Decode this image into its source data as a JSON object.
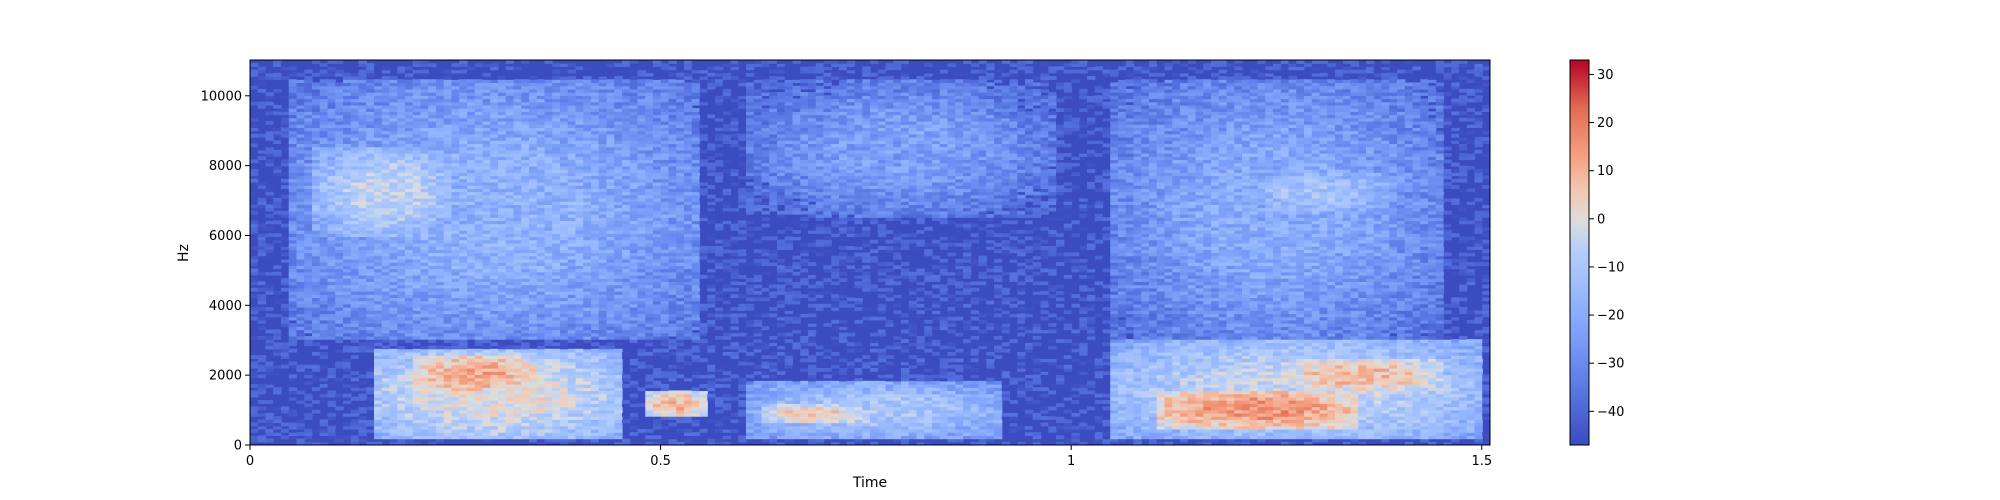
{
  "chart_data": {
    "type": "heatmap",
    "title": "",
    "xlabel": "Time",
    "ylabel": "Hz",
    "xlim": [
      0,
      1.51
    ],
    "ylim": [
      0,
      11025
    ],
    "x_ticks": [
      {
        "value": 0,
        "label": "0"
      },
      {
        "value": 0.5,
        "label": "0.5"
      },
      {
        "value": 1,
        "label": "1"
      },
      {
        "value": 1.5,
        "label": "1.5"
      }
    ],
    "y_ticks": [
      {
        "value": 0,
        "label": "0"
      },
      {
        "value": 2000,
        "label": "2000"
      },
      {
        "value": 4000,
        "label": "4000"
      },
      {
        "value": 6000,
        "label": "6000"
      },
      {
        "value": 8000,
        "label": "8000"
      },
      {
        "value": 10000,
        "label": "10000"
      }
    ],
    "colorbar": {
      "colormap": "coolwarm",
      "range": [
        -47,
        33
      ],
      "ticks": [
        {
          "value": 30,
          "label": "30"
        },
        {
          "value": 20,
          "label": "20"
        },
        {
          "value": 10,
          "label": "10"
        },
        {
          "value": 0,
          "label": "0"
        },
        {
          "value": -10,
          "label": "−10"
        },
        {
          "value": -20,
          "label": "−20"
        },
        {
          "value": -30,
          "label": "−30"
        },
        {
          "value": -40,
          "label": "−40"
        }
      ]
    },
    "regions": [
      {
        "t": [
          0.05,
          0.55
        ],
        "f": [
          3000,
          10500
        ],
        "level": -18
      },
      {
        "t": [
          0.08,
          0.25
        ],
        "f": [
          6000,
          8500
        ],
        "level": -5
      },
      {
        "t": [
          0.15,
          0.45
        ],
        "f": [
          200,
          2800
        ],
        "level": 0
      },
      {
        "t": [
          0.2,
          0.35
        ],
        "f": [
          1500,
          2600
        ],
        "level": 12
      },
      {
        "t": [
          0.48,
          0.56
        ],
        "f": [
          800,
          1600
        ],
        "level": 8
      },
      {
        "t": [
          0.6,
          0.98
        ],
        "f": [
          6500,
          10500
        ],
        "level": -24
      },
      {
        "t": [
          0.6,
          0.92
        ],
        "f": [
          200,
          1800
        ],
        "level": -10
      },
      {
        "t": [
          0.62,
          0.75
        ],
        "f": [
          600,
          1200
        ],
        "level": 5
      },
      {
        "t": [
          1.05,
          1.5
        ],
        "f": [
          200,
          3000
        ],
        "level": -4
      },
      {
        "t": [
          1.1,
          1.35
        ],
        "f": [
          500,
          1600
        ],
        "level": 15
      },
      {
        "t": [
          1.25,
          1.45
        ],
        "f": [
          1500,
          2500
        ],
        "level": 8
      },
      {
        "t": [
          1.05,
          1.45
        ],
        "f": [
          3000,
          10500
        ],
        "level": -20
      },
      {
        "t": [
          1.2,
          1.4
        ],
        "f": [
          6500,
          8000
        ],
        "level": -12
      }
    ],
    "background_level": -44
  }
}
